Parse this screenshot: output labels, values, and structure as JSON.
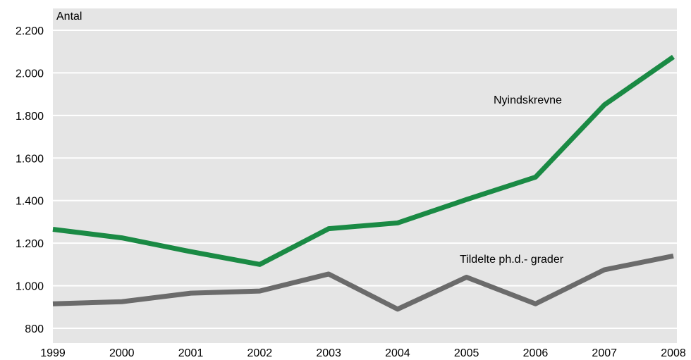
{
  "chart_data": {
    "type": "line",
    "ylabel": "Antal",
    "ylim": [
      800,
      2200
    ],
    "y_ticks": [
      800,
      1000,
      1200,
      1400,
      1600,
      1800,
      2000,
      2200
    ],
    "y_tick_labels": [
      "800",
      "1.000",
      "1.200",
      "1.400",
      "1.600",
      "1.800",
      "2.000",
      "2.200"
    ],
    "x": [
      "1999",
      "2000",
      "2001",
      "2002",
      "2003",
      "2004",
      "2005",
      "2006",
      "2007",
      "2008"
    ],
    "grid": true,
    "colors": {
      "plot_background": "#e5e5e5",
      "grid": "#ffffff"
    },
    "series": [
      {
        "name": "Nyindskrevne",
        "color": "#1a8a44",
        "values": [
          1265,
          1225,
          1160,
          1100,
          1268,
          1295,
          1405,
          1510,
          1850,
          2075
        ]
      },
      {
        "name": "Tildelte ph.d.- grader",
        "color": "#6b6b6b",
        "values": [
          915,
          925,
          965,
          975,
          1055,
          890,
          1040,
          915,
          1075,
          1140
        ]
      }
    ]
  }
}
